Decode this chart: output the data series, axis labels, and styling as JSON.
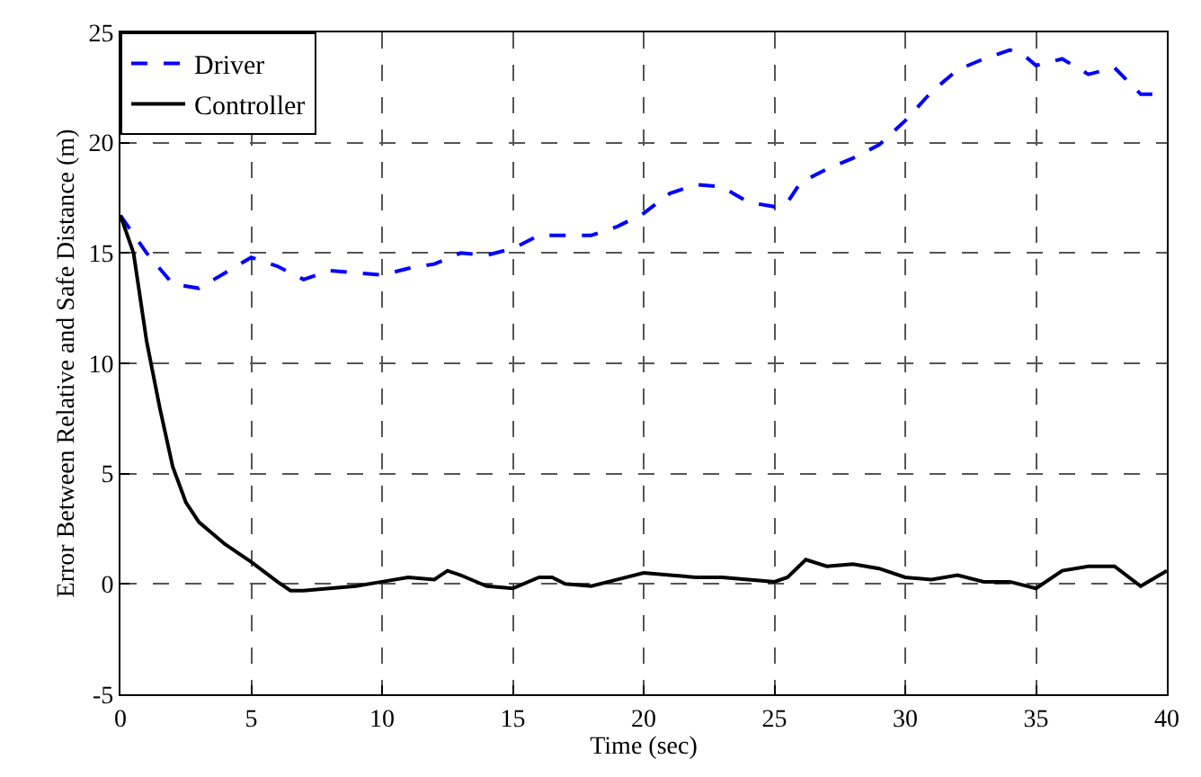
{
  "chart_data": {
    "type": "line",
    "xlabel": "Time (sec)",
    "ylabel": "Error Between Relative and Safe Distance (m)",
    "xlim": [
      0,
      40
    ],
    "xticks": [
      0,
      5,
      10,
      15,
      20,
      25,
      30,
      35,
      40
    ],
    "ylim": [
      -5,
      25
    ],
    "yticks": [
      -5,
      0,
      5,
      10,
      15,
      20,
      25
    ],
    "grid": true,
    "legend": "top left",
    "marker": "none",
    "series": [
      {
        "name": "Driver",
        "color": "#0000ff",
        "line_style": "dashed",
        "x": [
          0,
          1,
          2,
          3,
          4,
          5,
          6,
          7,
          8,
          10,
          11,
          12,
          13,
          14,
          15,
          16,
          17,
          18,
          19,
          20,
          21,
          22,
          23,
          24,
          25,
          25.5,
          26,
          27,
          28,
          29,
          30,
          31,
          32,
          33,
          34,
          34.5,
          35,
          36,
          37,
          38,
          39,
          40
        ],
        "values": [
          16.7,
          15,
          13.6,
          13.4,
          14.1,
          14.8,
          14.4,
          13.8,
          14.2,
          14.0,
          14.3,
          14.5,
          15.0,
          14.9,
          15.2,
          15.8,
          15.8,
          15.8,
          16.2,
          16.8,
          17.7,
          18.1,
          18.0,
          17.3,
          17.1,
          17.3,
          18.2,
          18.8,
          19.3,
          19.9,
          21.0,
          22.3,
          23.3,
          23.8,
          24.2,
          24.0,
          23.5,
          23.8,
          23.1,
          23.4,
          22.2,
          22.2
        ]
      },
      {
        "name": "Controller",
        "color": "#000000",
        "line_style": "solid",
        "x": [
          0,
          0.5,
          1,
          1.5,
          2,
          2.5,
          3,
          4,
          5,
          6,
          6.5,
          7,
          8,
          9,
          10,
          11,
          12,
          12.5,
          13,
          14,
          15,
          16,
          16.5,
          17,
          18,
          19,
          20,
          21,
          22,
          23,
          24,
          25,
          25.5,
          26.2,
          27,
          28,
          29,
          30,
          31,
          32,
          33,
          34,
          35,
          36,
          37,
          38,
          39,
          40
        ],
        "values": [
          16.7,
          15,
          11,
          8,
          5.3,
          3.7,
          2.8,
          1.8,
          1.0,
          0.1,
          -0.3,
          -0.3,
          -0.2,
          -0.1,
          0.1,
          0.3,
          0.2,
          0.6,
          0.4,
          -0.1,
          -0.2,
          0.3,
          0.3,
          0.0,
          -0.1,
          0.2,
          0.5,
          0.4,
          0.3,
          0.3,
          0.2,
          0.1,
          0.3,
          1.1,
          0.8,
          0.9,
          0.7,
          0.3,
          0.2,
          0.4,
          0.1,
          0.1,
          -0.2,
          0.6,
          0.8,
          0.8,
          -0.1,
          0.6
        ]
      }
    ]
  }
}
